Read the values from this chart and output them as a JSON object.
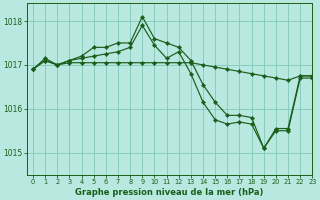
{
  "bg_color": "#b8e8e0",
  "grid_color": "#80c8b8",
  "line_color": "#1a5e1a",
  "marker_color": "#1a5e1a",
  "xlabel": "Graphe pression niveau de la mer (hPa)",
  "xlim": [
    -0.5,
    23
  ],
  "ylim": [
    1014.5,
    1018.4
  ],
  "yticks": [
    1015,
    1016,
    1017,
    1018
  ],
  "xticks": [
    0,
    1,
    2,
    3,
    4,
    5,
    6,
    7,
    8,
    9,
    10,
    11,
    12,
    13,
    14,
    15,
    16,
    17,
    18,
    19,
    20,
    21,
    22,
    23
  ],
  "series": [
    [
      1016.9,
      1017.1,
      1017.0,
      1017.1,
      1017.15,
      1017.2,
      1017.25,
      1017.3,
      1017.4,
      1017.9,
      1017.45,
      1017.15,
      1017.3,
      1016.8,
      1016.15,
      1015.75,
      1015.65,
      1015.7,
      1015.65,
      1015.1,
      1015.55,
      1015.55,
      1016.75,
      1016.75
    ],
    [
      1016.9,
      1017.15,
      1017.0,
      1017.1,
      1017.2,
      1017.4,
      1017.4,
      1017.5,
      1017.5,
      1018.1,
      1017.6,
      1017.5,
      1017.4,
      1017.1,
      1016.55,
      1016.15,
      1015.85,
      1015.85,
      1015.8,
      1015.1,
      1015.5,
      1015.5,
      1016.7,
      1016.7
    ],
    [
      1016.9,
      1017.1,
      1017.0,
      1017.05,
      1017.05,
      1017.05,
      1017.05,
      1017.05,
      1017.05,
      1017.05,
      1017.05,
      1017.05,
      1017.05,
      1017.05,
      1017.0,
      1016.95,
      1016.9,
      1016.85,
      1016.8,
      1016.75,
      1016.7,
      1016.65,
      1016.75,
      1016.75
    ]
  ]
}
